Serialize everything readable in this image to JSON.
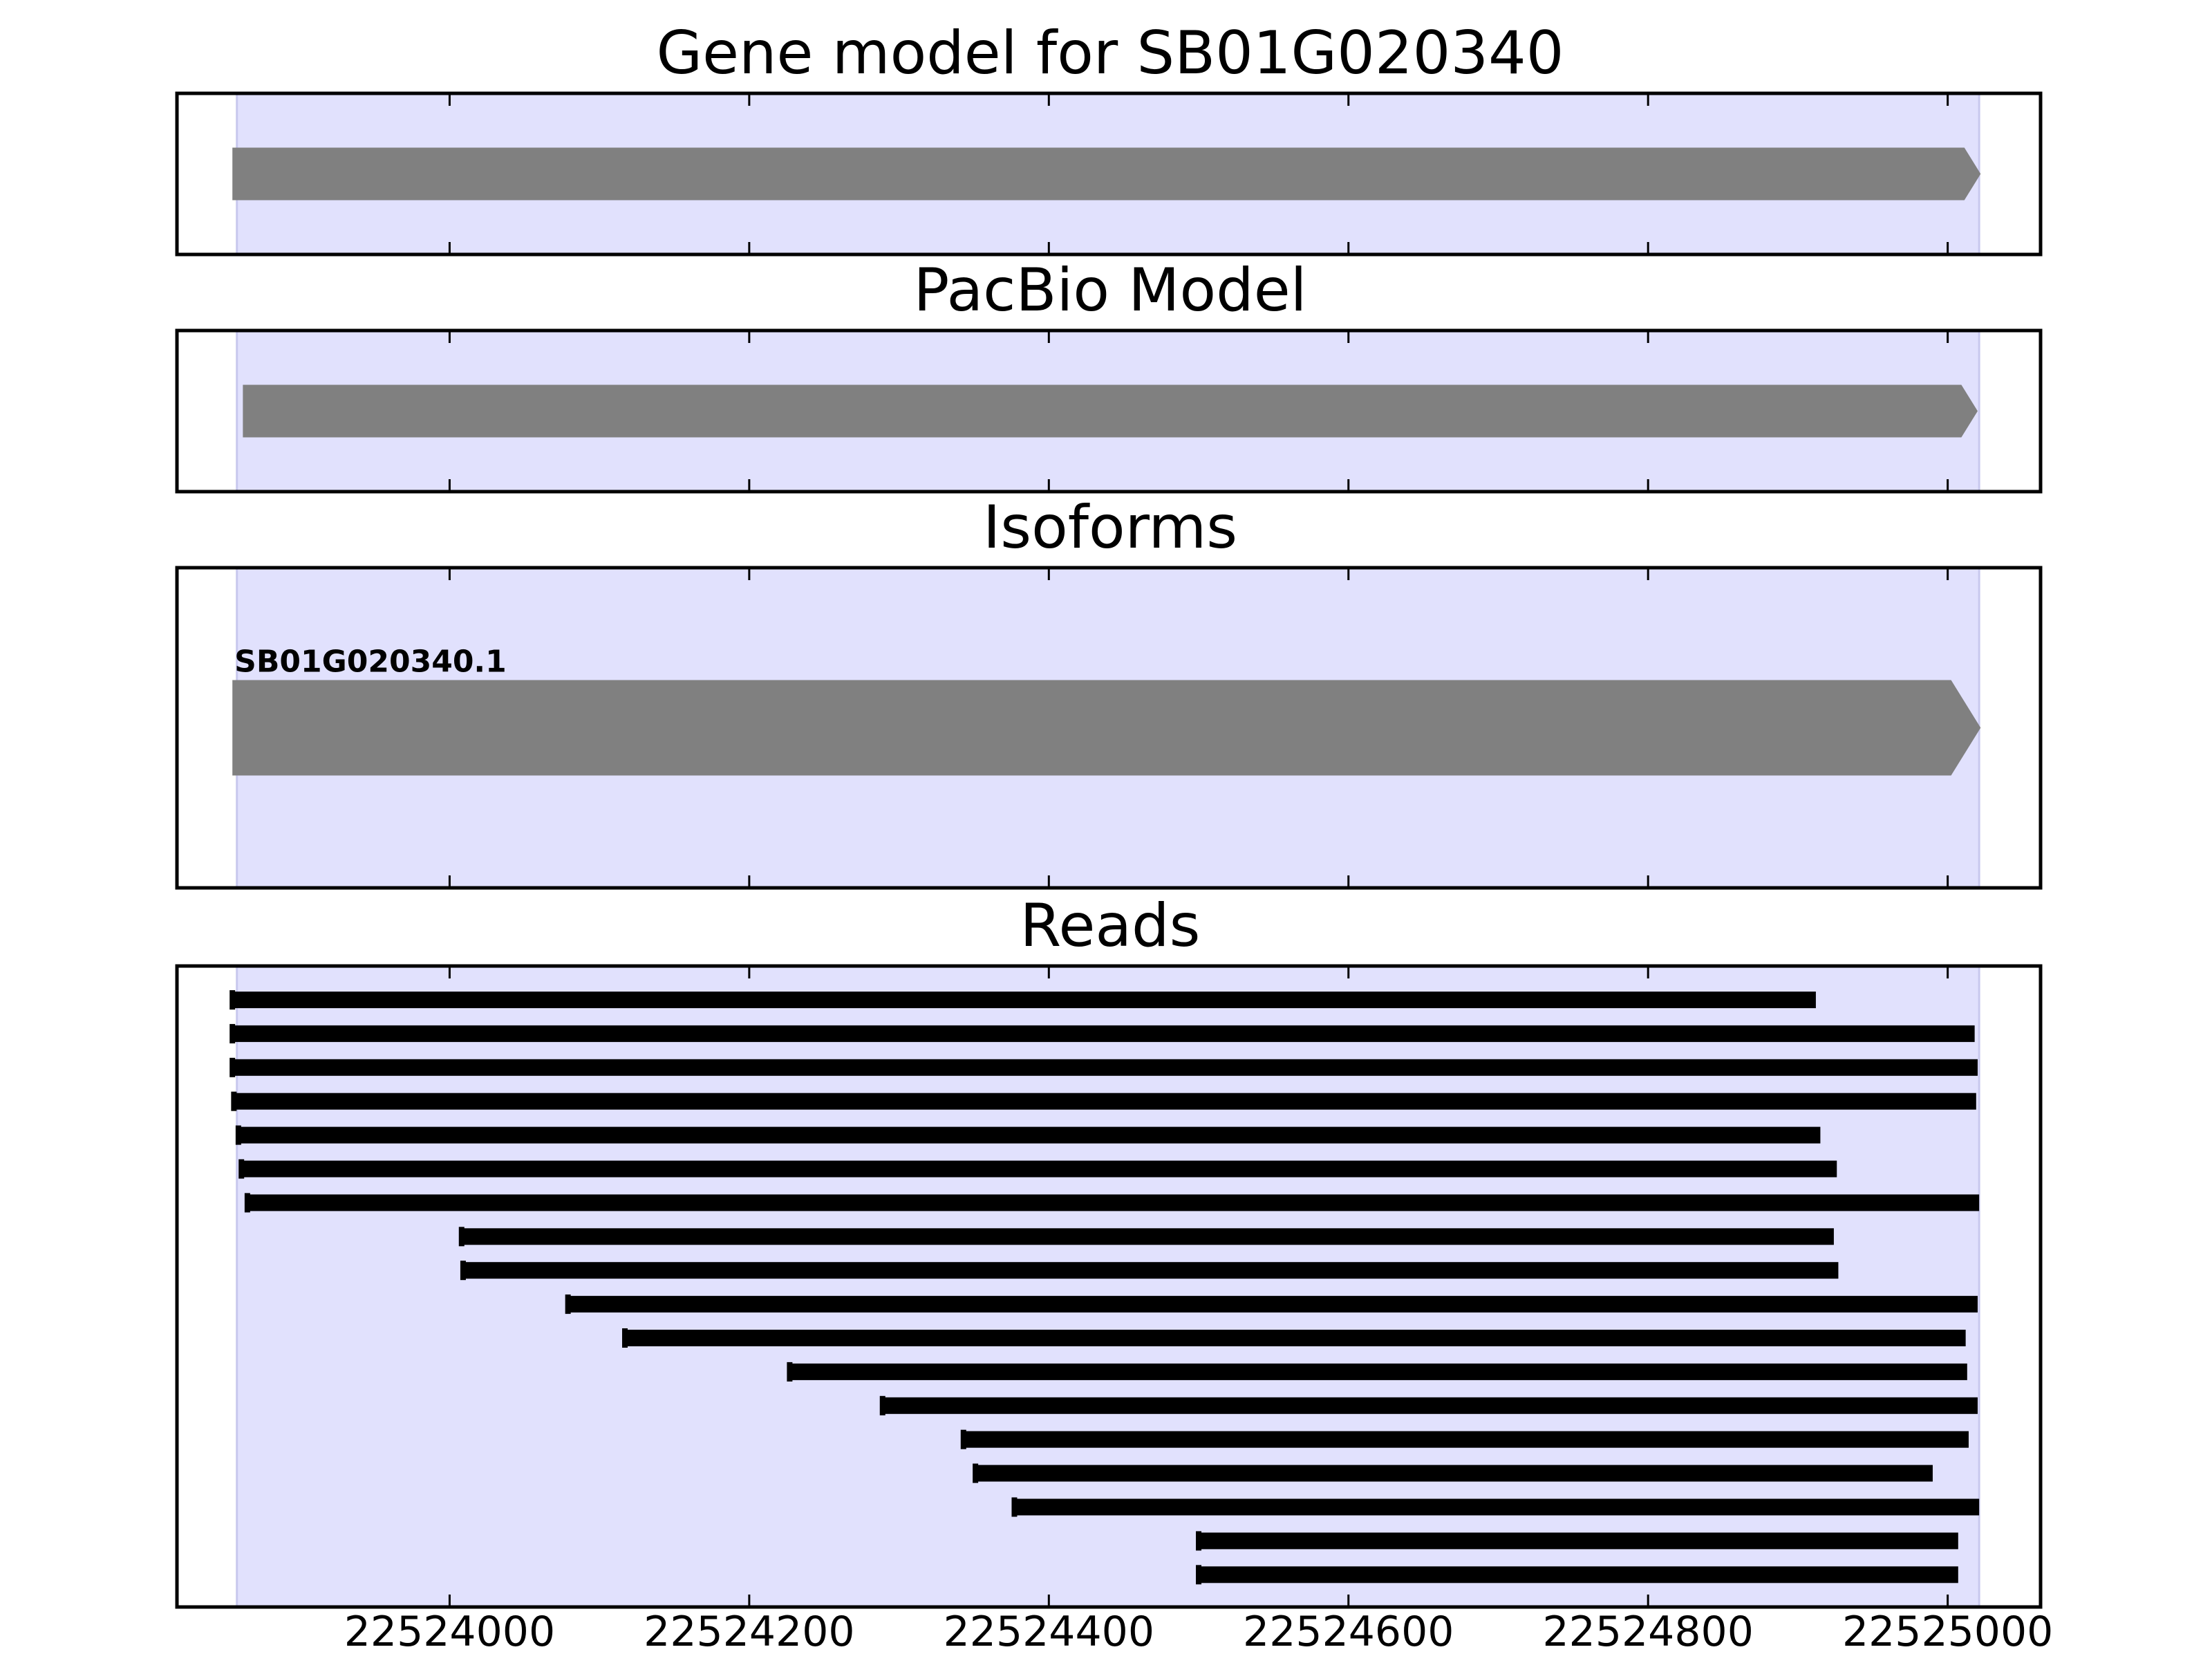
{
  "chart_data": {
    "type": "gene-track",
    "x_range": [
      22523818,
      22525062
    ],
    "region": {
      "start": 22523858,
      "end": 22525021,
      "color": "#e1e1fd"
    },
    "xticks": [
      22524000,
      22524200,
      22524400,
      22524600,
      22524800,
      22525000
    ],
    "xtick_labels": [
      "22524000",
      "22524200",
      "22524400",
      "22524600",
      "22524800",
      "22525000"
    ],
    "colors": {
      "feature": "#808080",
      "read": "#000000",
      "frame": "#000000"
    },
    "panels": [
      {
        "key": "gene",
        "title": "Gene model for SB01G020340",
        "features": [
          {
            "start": 22523855,
            "end": 22525022,
            "strand": "+"
          }
        ]
      },
      {
        "key": "pacbio",
        "title": "PacBio Model",
        "features": [
          {
            "start": 22523862,
            "end": 22525020,
            "strand": "+"
          }
        ]
      },
      {
        "key": "isoforms",
        "title": "Isoforms",
        "features": [
          {
            "label": "SB01G020340.1",
            "start": 22523855,
            "end": 22525022,
            "strand": "+"
          }
        ]
      },
      {
        "key": "reads",
        "title": "Reads",
        "reads": [
          {
            "start": 22523855,
            "end": 22524912
          },
          {
            "start": 22523855,
            "end": 22525018
          },
          {
            "start": 22523855,
            "end": 22525020
          },
          {
            "start": 22523856,
            "end": 22525019
          },
          {
            "start": 22523859,
            "end": 22524915
          },
          {
            "start": 22523861,
            "end": 22524926
          },
          {
            "start": 22523865,
            "end": 22525021
          },
          {
            "start": 22524008,
            "end": 22524924
          },
          {
            "start": 22524009,
            "end": 22524927
          },
          {
            "start": 22524079,
            "end": 22525020
          },
          {
            "start": 22524117,
            "end": 22525012
          },
          {
            "start": 22524227,
            "end": 22525013
          },
          {
            "start": 22524289,
            "end": 22525020
          },
          {
            "start": 22524343,
            "end": 22525014
          },
          {
            "start": 22524351,
            "end": 22524990
          },
          {
            "start": 22524377,
            "end": 22525021
          },
          {
            "start": 22524500,
            "end": 22525007
          },
          {
            "start": 22524500,
            "end": 22525007
          }
        ]
      }
    ]
  }
}
